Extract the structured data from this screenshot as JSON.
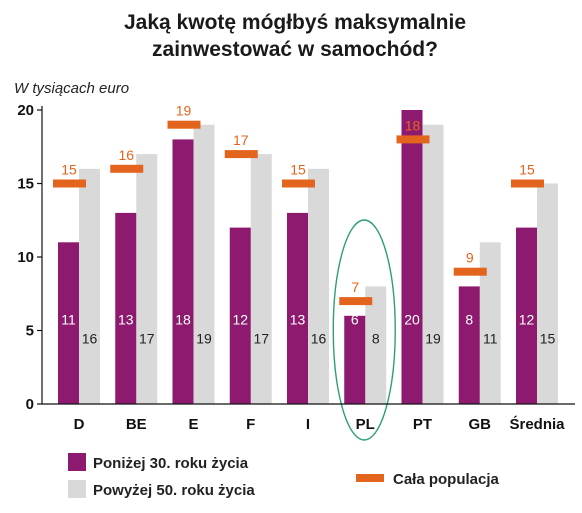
{
  "chart_data": {
    "type": "bar",
    "title_line1": "Jaką kwotę mógłbyś maksymalnie",
    "title_line2": "zainwestować w samochód?",
    "ylabel": "W tysiącach euro",
    "ylim": [
      0,
      20
    ],
    "yticks": [
      "0",
      "5",
      "10",
      "15",
      "20"
    ],
    "categories": [
      "D",
      "BE",
      "E",
      "F",
      "I",
      "PL",
      "PT",
      "GB",
      "Średnia"
    ],
    "series": [
      {
        "name": "Poniżej 30. roku życia",
        "color": "#8e1a6f",
        "values": [
          11,
          13,
          18,
          12,
          13,
          6,
          20,
          8,
          12
        ]
      },
      {
        "name": "Powyżej 50. roku życia",
        "color": "#d9d9d9",
        "values": [
          16,
          17,
          19,
          17,
          16,
          8,
          19,
          11,
          15
        ]
      }
    ],
    "population": {
      "name": "Cała populacja",
      "color": "#e3651d",
      "values": [
        15,
        16,
        19,
        17,
        15,
        7,
        18,
        9,
        15
      ]
    },
    "highlight": {
      "category": "PL",
      "color": "#2e9e78"
    },
    "grid": false,
    "legend_position": "bottom"
  }
}
